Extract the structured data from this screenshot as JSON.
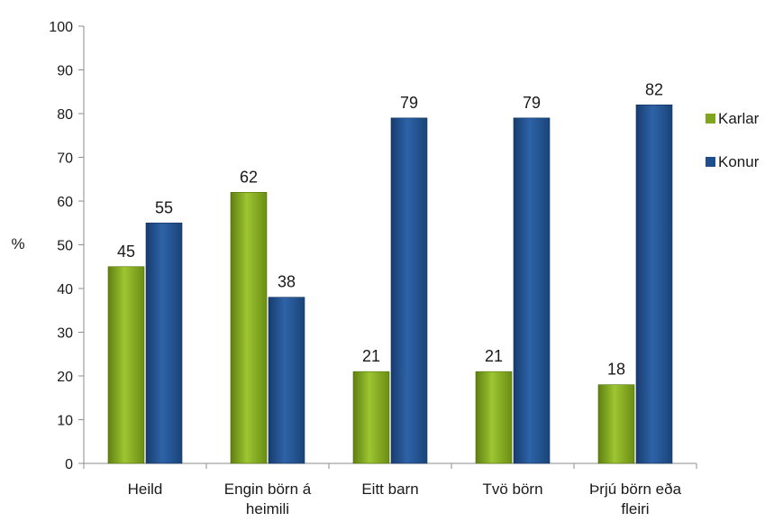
{
  "chart_data": {
    "type": "bar",
    "ylabel": "%",
    "ylim": [
      0,
      100
    ],
    "yticks": [
      0,
      10,
      20,
      30,
      40,
      50,
      60,
      70,
      80,
      90,
      100
    ],
    "grid": false,
    "legend_position": "right",
    "categories": [
      [
        "Heild"
      ],
      [
        "Engin börn á",
        "heimili"
      ],
      [
        "Eitt barn"
      ],
      [
        "Tvö börn"
      ],
      [
        "Þrjú börn eða",
        "fleiri"
      ]
    ],
    "series": [
      {
        "name": "Karlar",
        "values": [
          45,
          62,
          21,
          21,
          18
        ],
        "color": "#7fa61c"
      },
      {
        "name": "Konur",
        "values": [
          55,
          38,
          79,
          79,
          82
        ],
        "color": "#1f4e8c"
      }
    ]
  }
}
